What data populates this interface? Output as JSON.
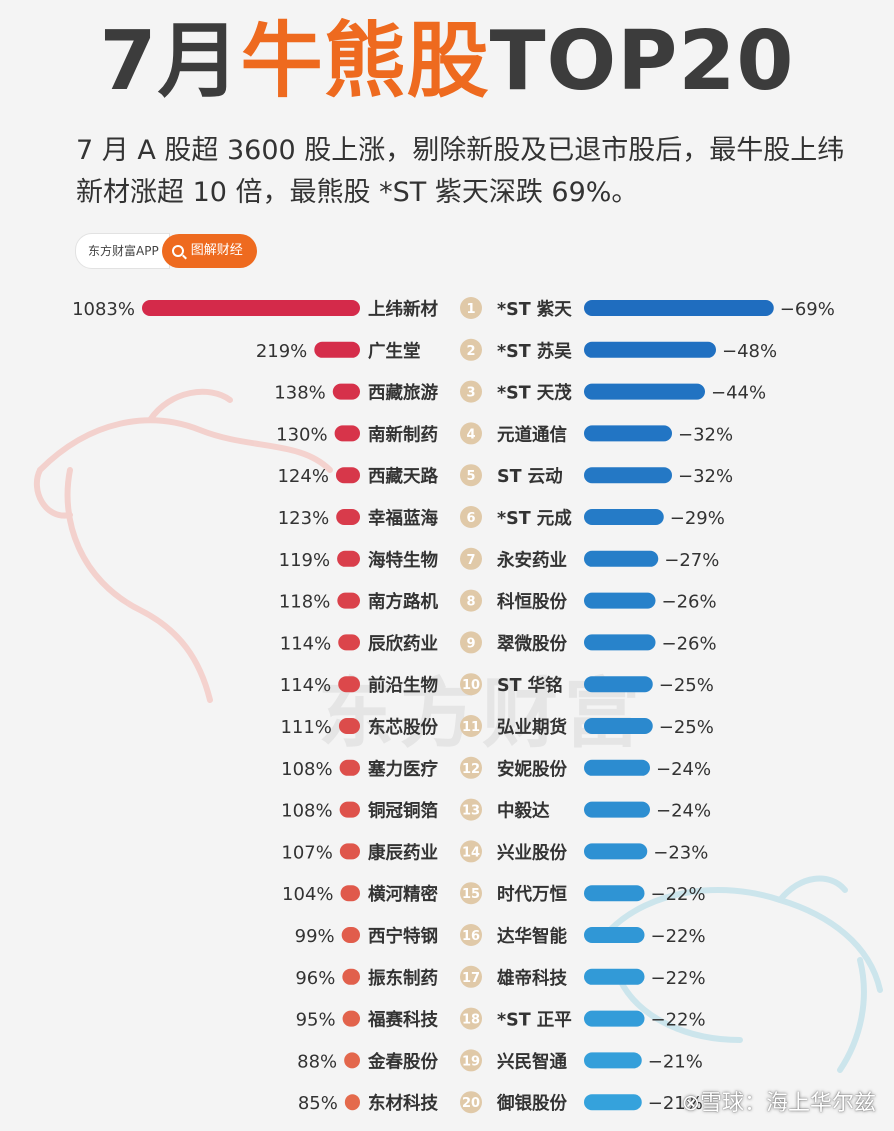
{
  "header": {
    "title_prefix": "7月",
    "title_highlight": "牛熊股",
    "title_suffix": "TOP20",
    "subtitle": "7 月 A 股超 3600 股上涨，剔除新股及已退市股后，最牛股上纬新材涨超 10 倍，最熊股 *ST 紫天深跌 69%。"
  },
  "source": {
    "app_label": "东方财富APP",
    "tag_label": "图解财经"
  },
  "watermark": {
    "center_text": "东方财富",
    "credit": "⊗雪球：海上华尔兹"
  },
  "colors": {
    "accent": "#ee6a1f",
    "bull": "#d42a4a",
    "bear": "#1f6dbf",
    "rank_circle": "#e0c9a8"
  },
  "chart_data": {
    "type": "bar",
    "ranks": [
      1,
      2,
      3,
      4,
      5,
      6,
      7,
      8,
      9,
      10,
      11,
      12,
      13,
      14,
      15,
      16,
      17,
      18,
      19,
      20
    ],
    "series": [
      {
        "name": "牛股",
        "stocks": [
          "上纬新材",
          "广生堂",
          "西藏旅游",
          "南新制药",
          "西藏天路",
          "幸福蓝海",
          "海特生物",
          "南方路机",
          "辰欣药业",
          "前沿生物",
          "东芯股份",
          "塞力医疗",
          "铜冠铜箔",
          "康辰药业",
          "横河精密",
          "西宁特钢",
          "振东制药",
          "福赛科技",
          "金春股份",
          "东材科技"
        ],
        "values": [
          1083,
          219,
          138,
          130,
          124,
          123,
          119,
          118,
          114,
          114,
          111,
          108,
          108,
          107,
          104,
          99,
          96,
          95,
          88,
          85
        ],
        "labels": [
          "1083%",
          "219%",
          "138%",
          "130%",
          "124%",
          "123%",
          "119%",
          "118%",
          "114%",
          "114%",
          "111%",
          "108%",
          "108%",
          "107%",
          "104%",
          "99%",
          "96%",
          "95%",
          "88%",
          "85%"
        ]
      },
      {
        "name": "熊股",
        "stocks": [
          "*ST 紫天",
          "*ST 苏吴",
          "*ST 天茂",
          "元道通信",
          "ST 云动",
          "*ST 元成",
          "永安药业",
          "科恒股份",
          "翠微股份",
          "ST 华铭",
          "弘业期货",
          "安妮股份",
          "中毅达",
          "兴业股份",
          "时代万恒",
          "达华智能",
          "雄帝科技",
          "*ST 正平",
          "兴民智通",
          "御银股份"
        ],
        "values": [
          -69,
          -48,
          -44,
          -32,
          -32,
          -29,
          -27,
          -26,
          -26,
          -25,
          -25,
          -24,
          -24,
          -23,
          -22,
          -22,
          -22,
          -22,
          -21,
          -21
        ],
        "labels": [
          "−69%",
          "−48%",
          "−44%",
          "−32%",
          "−32%",
          "−29%",
          "−27%",
          "−26%",
          "−26%",
          "−25%",
          "−25%",
          "−24%",
          "−24%",
          "−23%",
          "−22%",
          "−22%",
          "−22%",
          "−22%",
          "−21%",
          "−21%"
        ]
      }
    ]
  }
}
